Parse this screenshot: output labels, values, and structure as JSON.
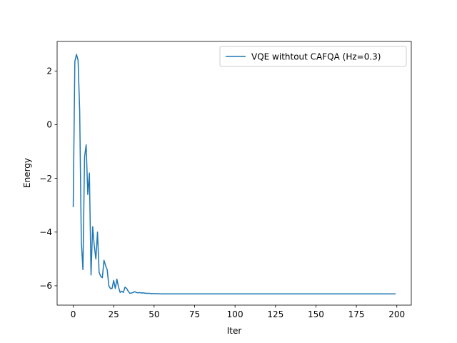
{
  "chart_data": {
    "type": "line",
    "xlabel": "Iter",
    "ylabel": "Energy",
    "xlim": [
      -9.95,
      208.95
    ],
    "ylim": [
      -6.72,
      3.1
    ],
    "xticks": [
      0,
      25,
      50,
      75,
      100,
      125,
      150,
      175,
      200
    ],
    "xtick_labels": [
      "0",
      "25",
      "50",
      "75",
      "100",
      "125",
      "150",
      "175",
      "200"
    ],
    "yticks": [
      -6,
      -4,
      -2,
      0,
      2
    ],
    "ytick_labels": [
      "−6",
      "−4",
      "−2",
      "0",
      "2"
    ],
    "grid": false,
    "legend_position": "top-right",
    "series": [
      {
        "name": "VQE withtout CAFQA (Hz=0.3)",
        "color": "#1f77b4",
        "x": [
          0,
          1,
          2,
          3,
          4,
          5,
          6,
          7,
          8,
          9,
          10,
          11,
          12,
          13,
          14,
          15,
          16,
          17,
          18,
          19,
          20,
          21,
          22,
          23,
          24,
          25,
          26,
          27,
          28,
          29,
          30,
          31,
          32,
          33,
          34,
          35,
          36,
          37,
          38,
          39,
          40,
          41,
          42,
          43,
          44,
          45,
          46,
          47,
          48,
          50,
          55,
          60,
          70,
          80,
          100,
          120,
          150,
          180,
          199
        ],
        "y": [
          -3.05,
          2.35,
          2.62,
          2.4,
          0.5,
          -4.35,
          -5.4,
          -1.2,
          -0.75,
          -2.6,
          -1.8,
          -5.6,
          -3.8,
          -4.5,
          -5.0,
          -4.0,
          -5.5,
          -5.65,
          -5.7,
          -5.05,
          -5.25,
          -5.4,
          -6.0,
          -6.1,
          -6.1,
          -5.8,
          -6.1,
          -5.75,
          -6.05,
          -6.25,
          -6.2,
          -6.25,
          -6.05,
          -6.1,
          -6.2,
          -6.28,
          -6.27,
          -6.25,
          -6.22,
          -6.25,
          -6.26,
          -6.25,
          -6.27,
          -6.26,
          -6.27,
          -6.28,
          -6.28,
          -6.28,
          -6.29,
          -6.29,
          -6.3,
          -6.3,
          -6.3,
          -6.3,
          -6.3,
          -6.3,
          -6.3,
          -6.3,
          -6.3
        ]
      }
    ]
  }
}
